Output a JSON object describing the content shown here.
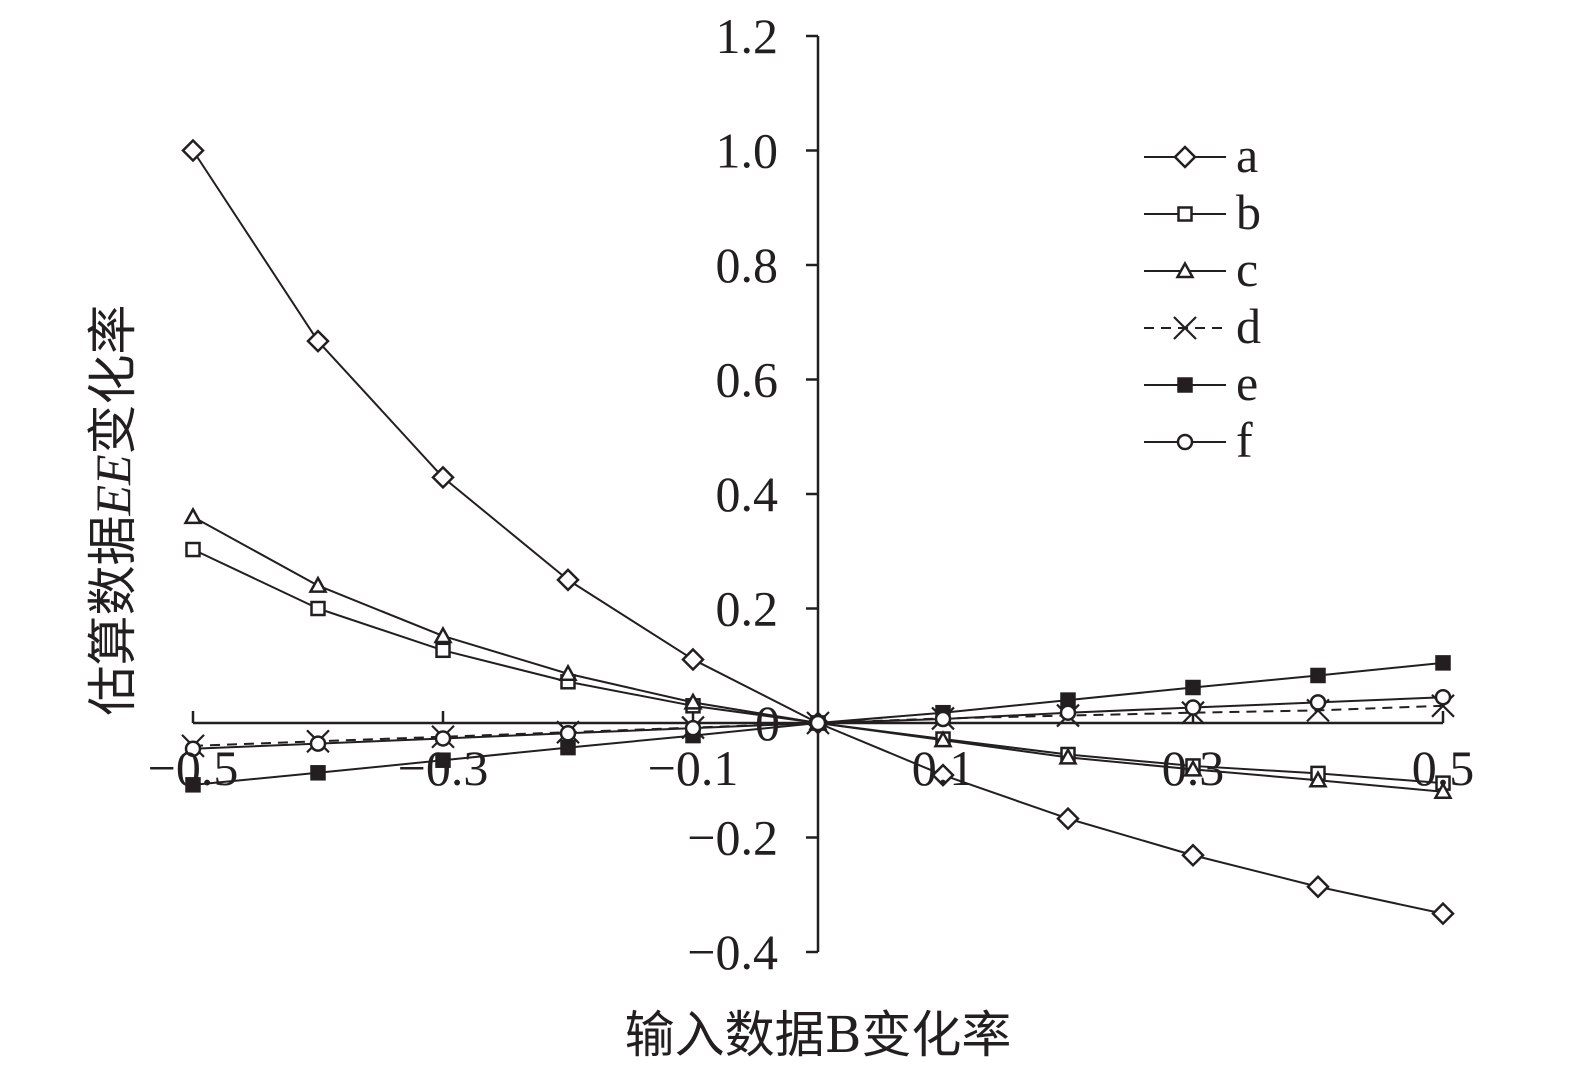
{
  "chart_data": {
    "type": "line",
    "title": "",
    "xlabel": "输入数据B变化率",
    "ylabel_parts": {
      "prefix": "估算数据",
      "italic": "EE",
      "suffix": "变化率"
    },
    "xlim": [
      -0.5,
      0.5
    ],
    "ylim": [
      -0.4,
      1.2
    ],
    "x_ticks": [
      {
        "value": -0.5,
        "label": "−0.5"
      },
      {
        "value": -0.3,
        "label": "−0.3"
      },
      {
        "value": -0.1,
        "label": "−0.1"
      },
      {
        "value": 0.1,
        "label": "0.1"
      },
      {
        "value": 0.3,
        "label": "0.3"
      },
      {
        "value": 0.5,
        "label": "0.5"
      }
    ],
    "y_ticks": [
      {
        "value": 1.2,
        "label": "1.2"
      },
      {
        "value": 1.0,
        "label": "1.0"
      },
      {
        "value": 0.8,
        "label": "0.8"
      },
      {
        "value": 0.6,
        "label": "0.6"
      },
      {
        "value": 0.4,
        "label": "0.4"
      },
      {
        "value": 0.2,
        "label": "0.2"
      },
      {
        "value": 0,
        "label": "0"
      },
      {
        "value": -0.2,
        "label": "−0.2"
      },
      {
        "value": -0.4,
        "label": "−0.4"
      }
    ],
    "grid": false,
    "legend_position": "top-right",
    "x": [
      -0.5,
      -0.4,
      -0.3,
      -0.2,
      -0.1,
      0,
      0.1,
      0.2,
      0.3,
      0.4,
      0.5
    ],
    "series": [
      {
        "name": "a",
        "marker": "diamond",
        "dash": false,
        "values": [
          1.0,
          0.667,
          0.429,
          0.25,
          0.111,
          0,
          -0.091,
          -0.167,
          -0.231,
          -0.286,
          -0.333
        ]
      },
      {
        "name": "b",
        "marker": "square",
        "dash": false,
        "values": [
          0.303,
          0.2,
          0.127,
          0.072,
          0.03,
          0,
          -0.028,
          -0.055,
          -0.075,
          -0.088,
          -0.105
        ]
      },
      {
        "name": "c",
        "marker": "triangle",
        "dash": false,
        "values": [
          0.36,
          0.24,
          0.152,
          0.086,
          0.036,
          0,
          -0.03,
          -0.06,
          -0.081,
          -0.1,
          -0.12
        ]
      },
      {
        "name": "d",
        "marker": "cross",
        "dash": true,
        "values": [
          -0.04,
          -0.032,
          -0.024,
          -0.016,
          -0.008,
          0,
          0.008,
          0.013,
          0.018,
          0.022,
          0.03
        ]
      },
      {
        "name": "e",
        "marker": "filled-square",
        "dash": false,
        "values": [
          -0.108,
          -0.087,
          -0.065,
          -0.043,
          -0.022,
          0,
          0.018,
          0.04,
          0.062,
          0.083,
          0.105
        ]
      },
      {
        "name": "f",
        "marker": "circle",
        "dash": false,
        "values": [
          -0.045,
          -0.036,
          -0.027,
          -0.018,
          -0.009,
          0,
          0.007,
          0.018,
          0.027,
          0.036,
          0.045
        ]
      }
    ],
    "colors": {
      "line": "#231f20",
      "background": "#ffffff"
    }
  }
}
